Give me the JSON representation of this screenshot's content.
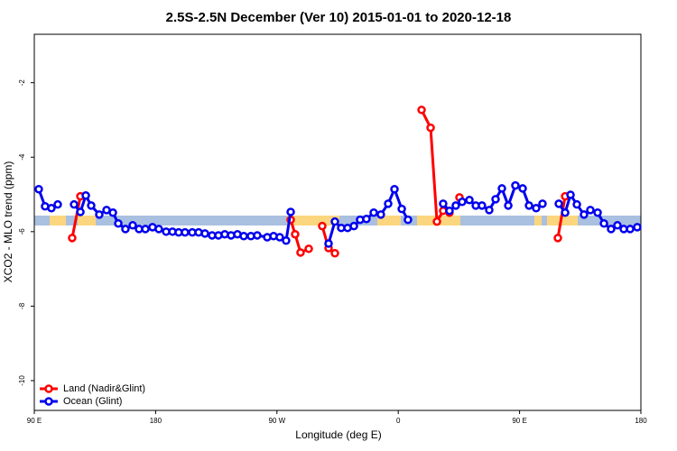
{
  "chart_data": {
    "type": "line",
    "title": "2.5S-2.5N December (Ver 10)   2015-01-01 to 2020-12-18",
    "x_label": "Longitude (deg E)",
    "y_label": "XCO2 - MLO trend (ppm)",
    "xlim": [
      90,
      540
    ],
    "ylim": [
      -10.8,
      -0.7
    ],
    "xticks": [
      {
        "value": 90,
        "label": "90 E"
      },
      180,
      {
        "value": 270,
        "label": "90 W"
      },
      {
        "value": 360,
        "label": "0"
      },
      {
        "value": 450,
        "label": "90 E"
      },
      {
        "value": 540,
        "label": "180"
      }
    ],
    "yticks": [
      -10,
      -8,
      -6,
      -4,
      -2
    ],
    "legend": "bottom-left",
    "series": [
      {
        "name": "Land (Nadir&Glint)",
        "color": "#ff0000",
        "x": [
          118.1,
          124.2,
          null,
          280.2,
          283.5,
          287.5,
          293.6,
          null,
          303.6,
          308.3,
          313,
          null,
          377.3,
          384,
          388.7,
          393.3,
          398,
          null,
          405.4,
          null,
          478.4,
          483.8
        ],
        "values": [
          -6.17,
          -5.05,
          null,
          -5.68,
          -6.07,
          -6.56,
          -6.46,
          null,
          -5.85,
          -6.44,
          -6.58,
          null,
          -2.73,
          -3.21,
          -5.73,
          -5.44,
          -5.49,
          null,
          -5.08,
          null,
          -6.17,
          -5.05
        ]
      },
      {
        "name": "Ocean (Glint)",
        "color": "#0000ee",
        "x": [
          93.3,
          98,
          102.7,
          107.4,
          null,
          119.5,
          124.2,
          128.2,
          132.2,
          138.2,
          143.6,
          148.3,
          152.3,
          157.6,
          163,
          167.7,
          172.4,
          177.7,
          182.4,
          187.8,
          192.5,
          197.1,
          201.8,
          207.2,
          211.9,
          216.6,
          221.9,
          226.6,
          231.3,
          236,
          240.7,
          245.4,
          250.7,
          255.4,
          262.8,
          267.5,
          272.1,
          276.8,
          280.2,
          null,
          308.3,
          313,
          317.7,
          322.4,
          327.1,
          331.7,
          336.4,
          341.8,
          347.1,
          352.5,
          357.2,
          362.6,
          367.2,
          null,
          393.3,
          398,
          402.7,
          407.4,
          412.8,
          417.5,
          422.1,
          427.5,
          432.2,
          436.9,
          441.6,
          446.9,
          452.3,
          457,
          462.3,
          467,
          null,
          479.1,
          483.8,
          487.8,
          492.5,
          497.8,
          502.5,
          507.9,
          512.6,
          517.9,
          522.6,
          527.3,
          532,
          537.3
        ],
        "values": [
          -4.86,
          -5.32,
          -5.37,
          -5.27,
          null,
          -5.27,
          -5.47,
          -5.03,
          -5.3,
          -5.54,
          -5.42,
          -5.49,
          -5.78,
          -5.93,
          -5.83,
          -5.93,
          -5.93,
          -5.88,
          -5.93,
          -6.0,
          -6.0,
          -6.02,
          -6.02,
          -6.02,
          -6.02,
          -6.05,
          -6.1,
          -6.1,
          -6.07,
          -6.1,
          -6.07,
          -6.12,
          -6.12,
          -6.1,
          -6.15,
          -6.12,
          -6.15,
          -6.24,
          -5.47,
          null,
          -6.32,
          -5.73,
          -5.9,
          -5.9,
          -5.85,
          -5.68,
          -5.66,
          -5.49,
          -5.54,
          -5.25,
          -4.86,
          -5.39,
          -5.68,
          null,
          -5.25,
          -5.44,
          -5.3,
          -5.2,
          -5.15,
          -5.3,
          -5.3,
          -5.42,
          -5.13,
          -4.84,
          -5.3,
          -4.76,
          -4.84,
          -5.3,
          -5.37,
          -5.25,
          null,
          -5.25,
          -5.49,
          -5.01,
          -5.27,
          -5.54,
          -5.42,
          -5.49,
          -5.78,
          -5.93,
          -5.83,
          -5.93,
          -5.93,
          -5.88
        ]
      }
    ]
  }
}
